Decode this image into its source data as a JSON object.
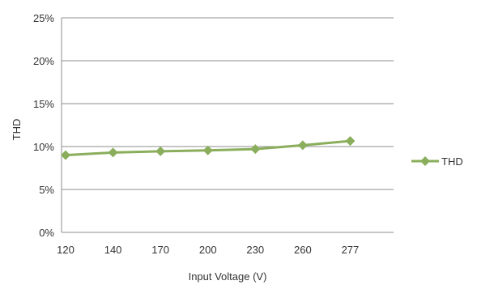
{
  "chart_data": {
    "type": "line",
    "title": "",
    "xlabel": "Input Voltage (V)",
    "ylabel": "THD",
    "categories": [
      "120",
      "140",
      "170",
      "200",
      "230",
      "260",
      "277"
    ],
    "series": [
      {
        "name": "THD",
        "values": [
          9.0,
          9.3,
          9.45,
          9.55,
          9.7,
          10.15,
          10.65
        ]
      }
    ],
    "ylim": [
      0,
      25
    ],
    "yticks": [
      0,
      5,
      10,
      15,
      20,
      25
    ],
    "ytick_labels": [
      "0%",
      "5%",
      "10%",
      "15%",
      "20%",
      "25%"
    ],
    "grid": true,
    "legend_position": "right",
    "colors": {
      "series": "#8AAE5B",
      "grid": "#8C8C8C",
      "axis": "#8C8C8C"
    }
  }
}
